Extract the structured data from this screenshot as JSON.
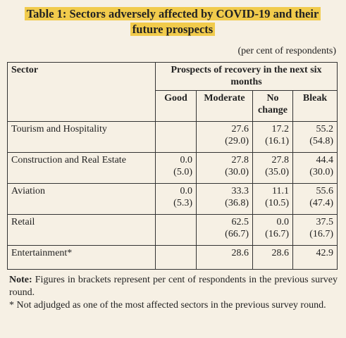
{
  "title": "Table 1: Sectors adversely affected by COVID-19 and their future prospects",
  "unit_note": "(per cent of respondents)",
  "table": {
    "header": {
      "sector": "Sector",
      "group": "Prospects of recovery in the next six months",
      "columns": [
        "Good",
        "Moderate",
        "No change",
        "Bleak"
      ]
    },
    "rows": [
      {
        "sector": "Tourism and Hospitality",
        "cells": [
          null,
          [
            "27.6",
            "(29.0)"
          ],
          [
            "17.2",
            "(16.1)"
          ],
          [
            "55.2",
            "(54.8)"
          ]
        ]
      },
      {
        "sector": "Construction and Real Estate",
        "cells": [
          [
            "0.0",
            "(5.0)"
          ],
          [
            "27.8",
            "(30.0)"
          ],
          [
            "27.8",
            "(35.0)"
          ],
          [
            "44.4",
            "(30.0)"
          ]
        ]
      },
      {
        "sector": "Aviation",
        "cells": [
          [
            "0.0",
            "(5.3)"
          ],
          [
            "33.3",
            "(36.8)"
          ],
          [
            "11.1",
            "(10.5)"
          ],
          [
            "55.6",
            "(47.4)"
          ]
        ]
      },
      {
        "sector": "Retail",
        "cells": [
          null,
          [
            "62.5",
            "(66.7)"
          ],
          [
            "0.0",
            "(16.7)"
          ],
          [
            "37.5",
            "(16.7)"
          ]
        ]
      },
      {
        "sector": "Entertainment*",
        "cells": [
          null,
          [
            "28.6"
          ],
          [
            "28.6"
          ],
          [
            "42.9"
          ]
        ]
      }
    ]
  },
  "note": {
    "label": "Note:",
    "text": "Figures in brackets represent per cent of respondents in the previous survey round.",
    "footnote": "* Not adjudged as one of the most affected sectors in the previous survey round."
  }
}
